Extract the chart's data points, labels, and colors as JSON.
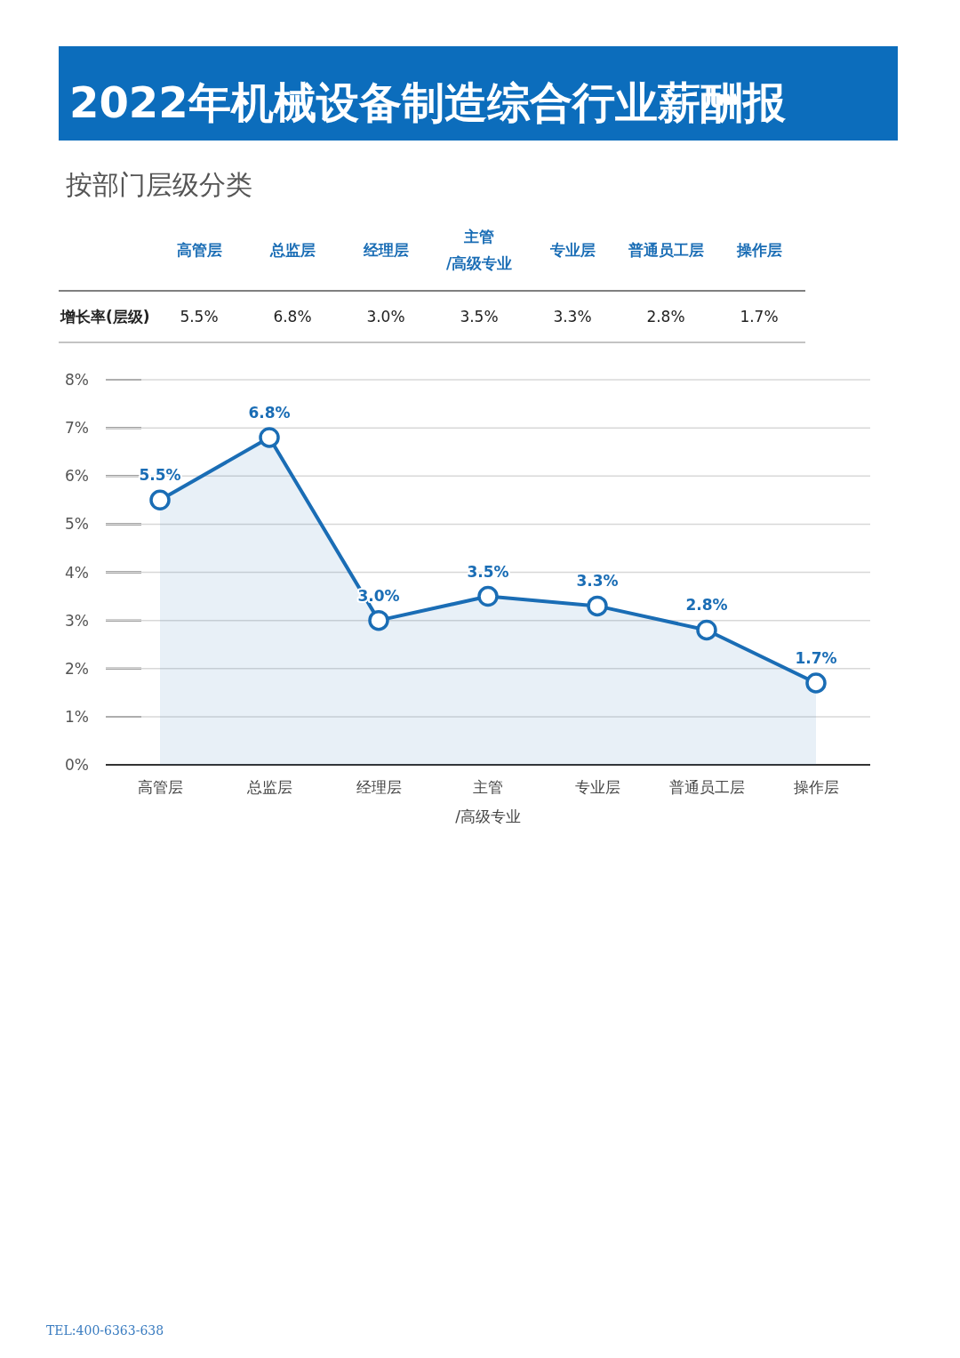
{
  "chart_data": {
    "type": "area",
    "title": "2022年机械设备制造综合行业薪酬报",
    "subtitle": "按部门层级分类",
    "categories": [
      "高管层",
      "总监层",
      "经理层",
      "主管/高级专业",
      "专业层",
      "普通员工层",
      "操作层"
    ],
    "series": [
      {
        "color": "#1a6db5",
        "values": [
          5.5,
          6.8,
          3.0,
          3.5,
          3.3,
          2.8,
          1.7
        ],
        "value_labels": [
          "5.5%",
          "6.8%",
          "3.0%",
          "3.5%",
          "3.3%",
          "2.8%",
          "1.7%"
        ]
      }
    ],
    "ylim": [
      0,
      8
    ],
    "yticks": [
      {
        "value": 0,
        "label": "0%"
      },
      {
        "value": 1,
        "label": "1%"
      },
      {
        "value": 2,
        "label": "2%"
      },
      {
        "value": 3,
        "label": "3%"
      },
      {
        "value": 4,
        "label": "4%"
      },
      {
        "value": 5,
        "label": "5%"
      },
      {
        "value": 6,
        "label": "6%"
      },
      {
        "value": 7,
        "label": "7%"
      },
      {
        "value": 8,
        "label": "8%"
      }
    ],
    "grid": "y",
    "marker": "circle",
    "line_style": "solid",
    "annotations": [
      "增长率(层级)",
      "TEL:400-6363-638"
    ]
  }
}
